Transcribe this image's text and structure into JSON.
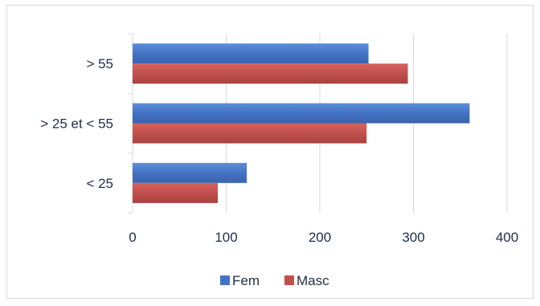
{
  "chart_data": {
    "type": "bar",
    "orientation": "horizontal",
    "categories": [
      "< 25",
      "> 25 et < 55",
      "> 55"
    ],
    "series": [
      {
        "name": "Fem",
        "values": [
          122,
          360,
          252
        ],
        "color": "#4472c4"
      },
      {
        "name": "Masc",
        "values": [
          91,
          250,
          294
        ],
        "color": "#c0504d"
      }
    ],
    "xlim": [
      0,
      400
    ],
    "xticks": [
      0,
      100,
      200,
      300,
      400
    ],
    "grid": true,
    "legend": "bottom"
  }
}
